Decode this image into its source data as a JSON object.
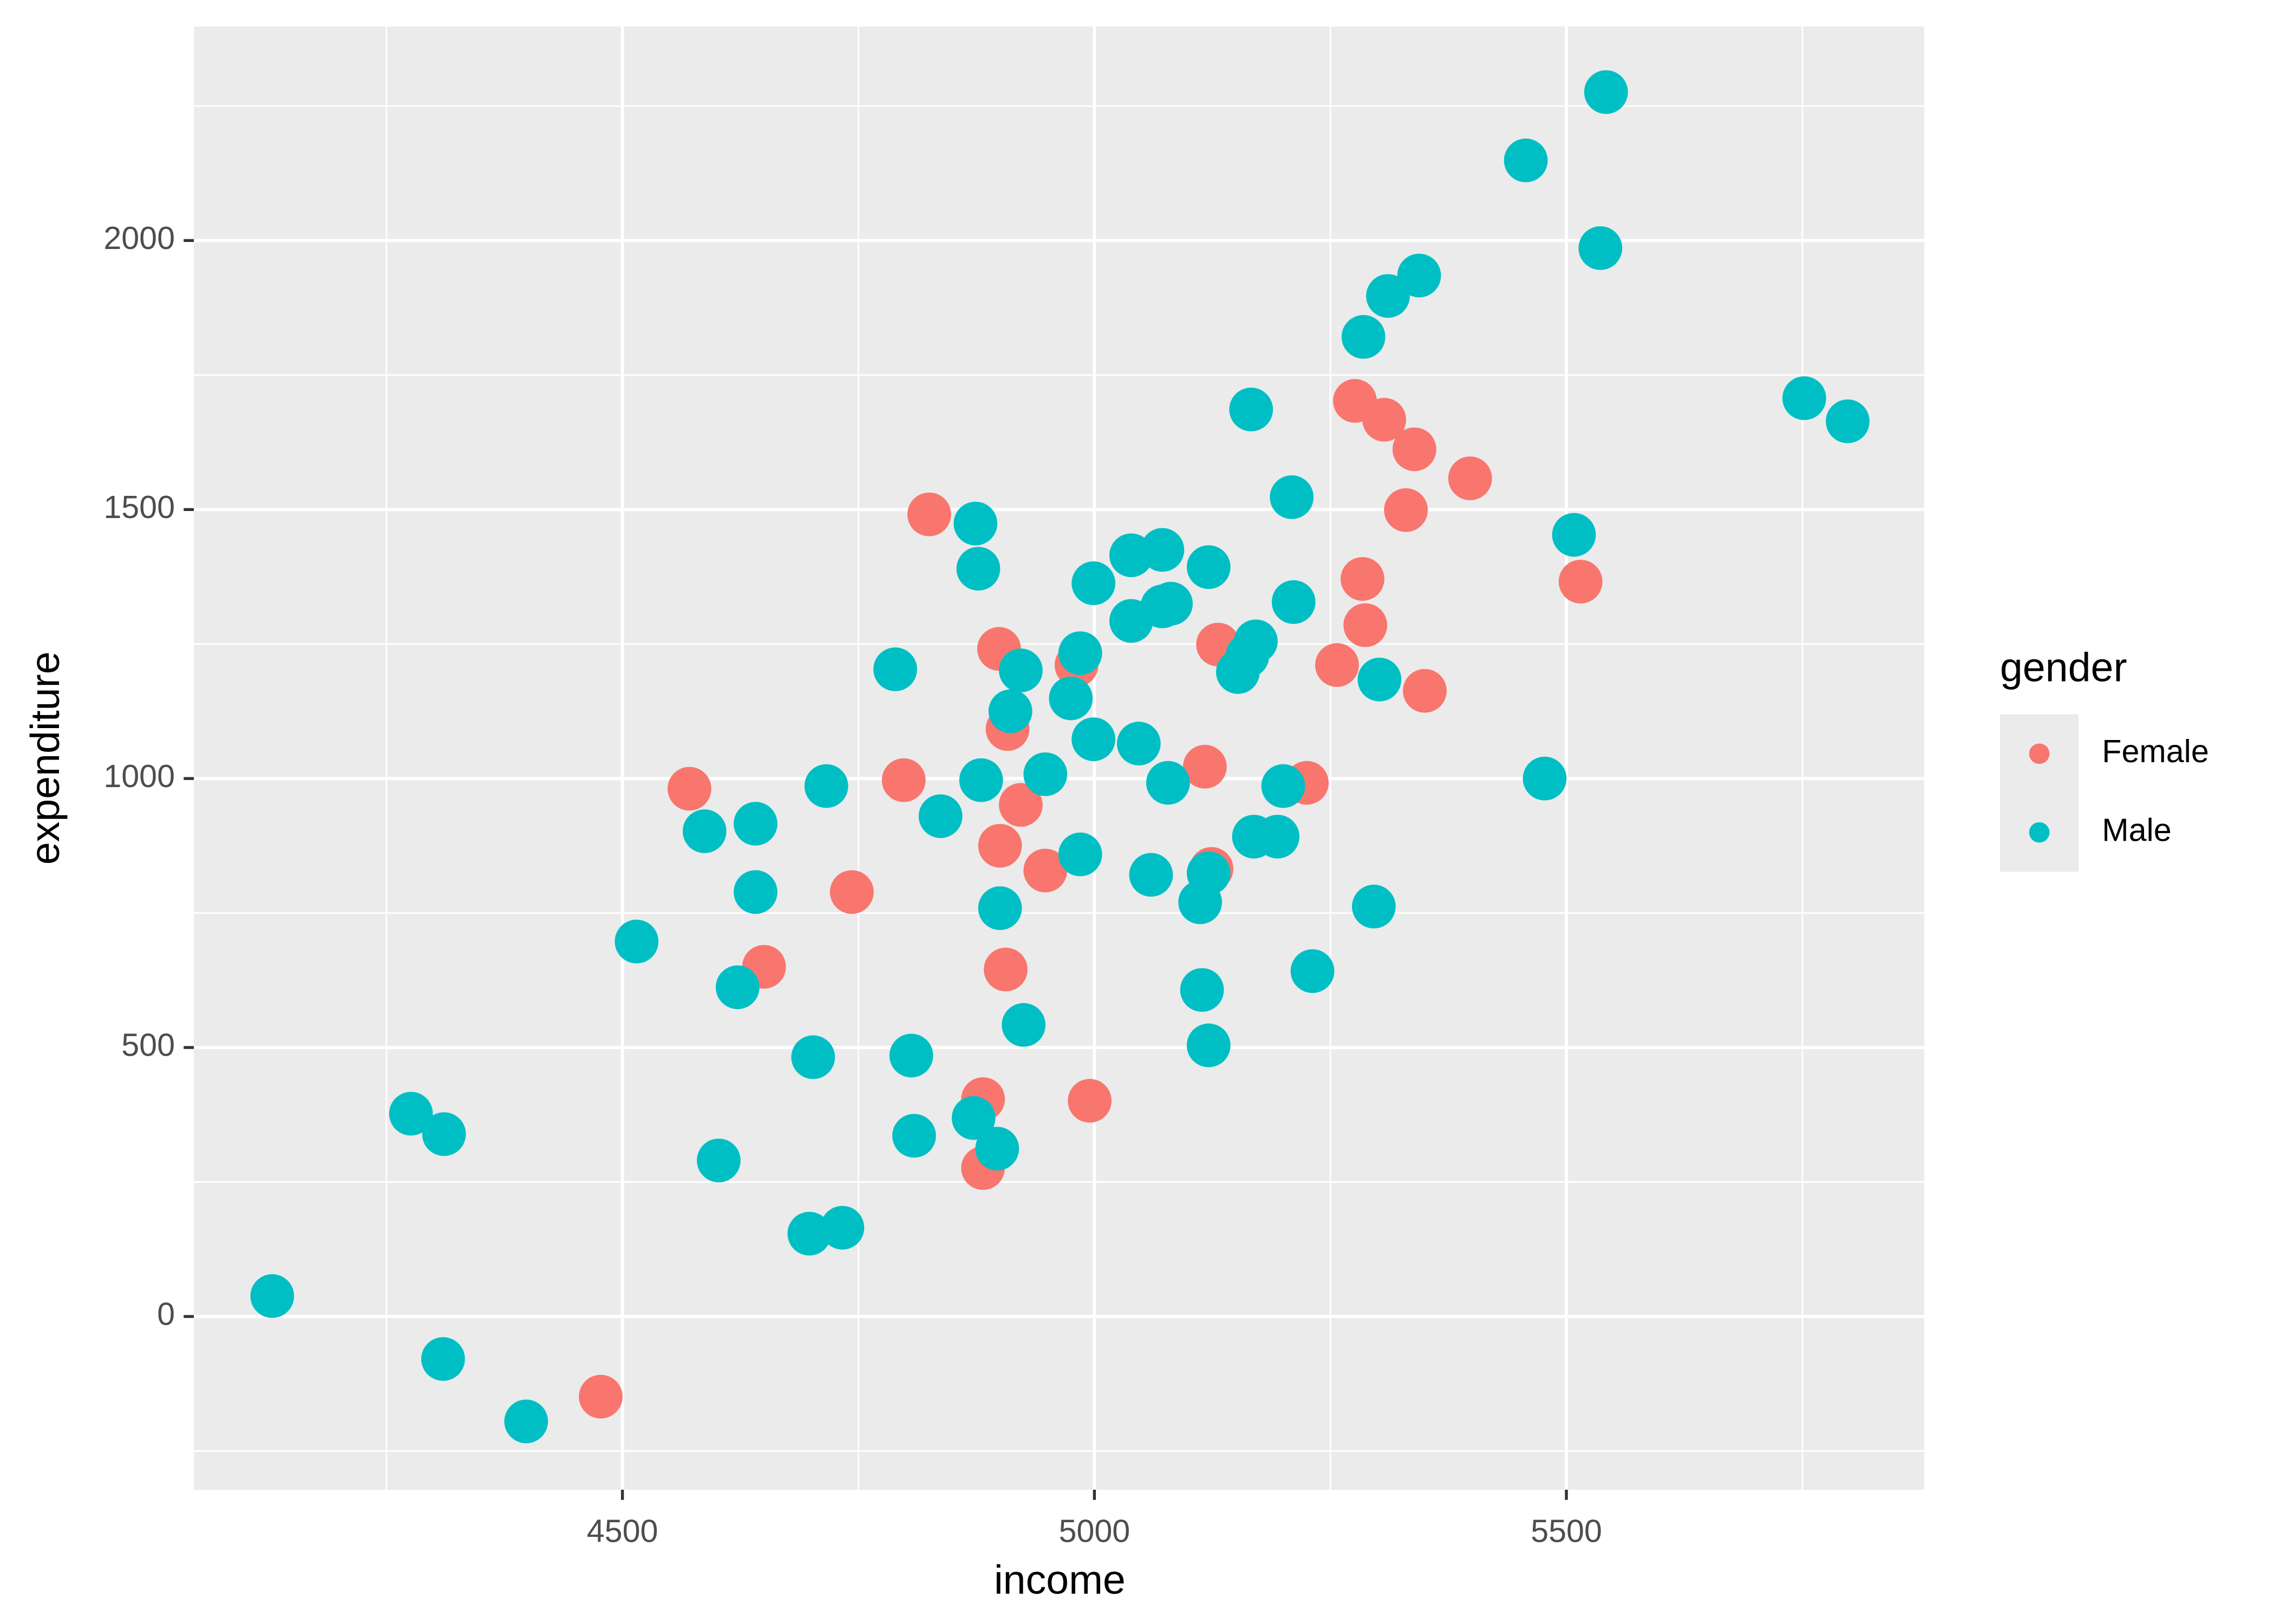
{
  "chart_data": {
    "type": "scatter",
    "x_label": "income",
    "y_label": "expenditure",
    "legend_title": "gender",
    "legend_position": "right",
    "grid": true,
    "xlim": [
      4046,
      5879
    ],
    "ylim": [
      -322,
      2398
    ],
    "xticks": [
      4500,
      5000,
      5500
    ],
    "yticks": [
      0,
      500,
      1000,
      1500,
      2000
    ],
    "series": [
      {
        "name": "Female",
        "color": "#F8766D",
        "x": [
          4477,
          4571,
          4650,
          4743,
          4798,
          4825,
          4899,
          4908,
          4922,
          4900,
          4906,
          4882,
          4882,
          4948,
          4981,
          4995,
          5117,
          5131,
          5124,
          5225,
          5257,
          5276,
          5307,
          5339,
          5330,
          5284,
          5287,
          5350,
          5398,
          5515
        ],
        "values": [
          -149,
          981,
          650,
          789,
          997,
          1491,
          1241,
          1092,
          951,
          875,
          645,
          404,
          276,
          829,
          1211,
          401,
          1022,
          1249,
          832,
          992,
          1211,
          1702,
          1667,
          1612,
          1499,
          1371,
          1285,
          1163,
          1558,
          1366
        ]
      },
      {
        "name": "Male",
        "color": "#00BFC4",
        "x": [
          4129,
          4276,
          4311,
          4310,
          4398,
          4515,
          4587,
          4641,
          4641,
          4622,
          4602,
          4702,
          4698,
          4733,
          4716,
          4789,
          4806,
          4809,
          4837,
          4874,
          4877,
          4880,
          4872,
          4897,
          4900,
          4911,
          4922,
          4925,
          4948,
          4975,
          4985,
          4985,
          4999,
          4999,
          5039,
          5039,
          5047,
          5060,
          5072,
          5072,
          5081,
          5078,
          5121,
          5121,
          5112,
          5114,
          5121,
          5152,
          5162,
          5171,
          5166,
          5169,
          5194,
          5200,
          5209,
          5211,
          5231,
          5285,
          5296,
          5302,
          5311,
          5344,
          5457,
          5542,
          5536,
          5508,
          5477,
          5752,
          5798
        ],
        "values": [
          38,
          377,
          339,
          -79,
          -195,
          697,
          902,
          916,
          789,
          612,
          290,
          482,
          154,
          165,
          986,
          1203,
          485,
          336,
          930,
          1474,
          1390,
          997,
          369,
          312,
          759,
          1125,
          1201,
          542,
          1008,
          1149,
          1233,
          859,
          1363,
          1073,
          1415,
          1293,
          1065,
          821,
          1425,
          1320,
          1325,
          992,
          1393,
          824,
          770,
          607,
          504,
          1198,
          1228,
          1255,
          1686,
          892,
          892,
          986,
          1523,
          1328,
          642,
          1821,
          762,
          1184,
          1897,
          1935,
          2149,
          2276,
          1986,
          1453,
          1000,
          1707,
          1664
        ]
      }
    ]
  }
}
